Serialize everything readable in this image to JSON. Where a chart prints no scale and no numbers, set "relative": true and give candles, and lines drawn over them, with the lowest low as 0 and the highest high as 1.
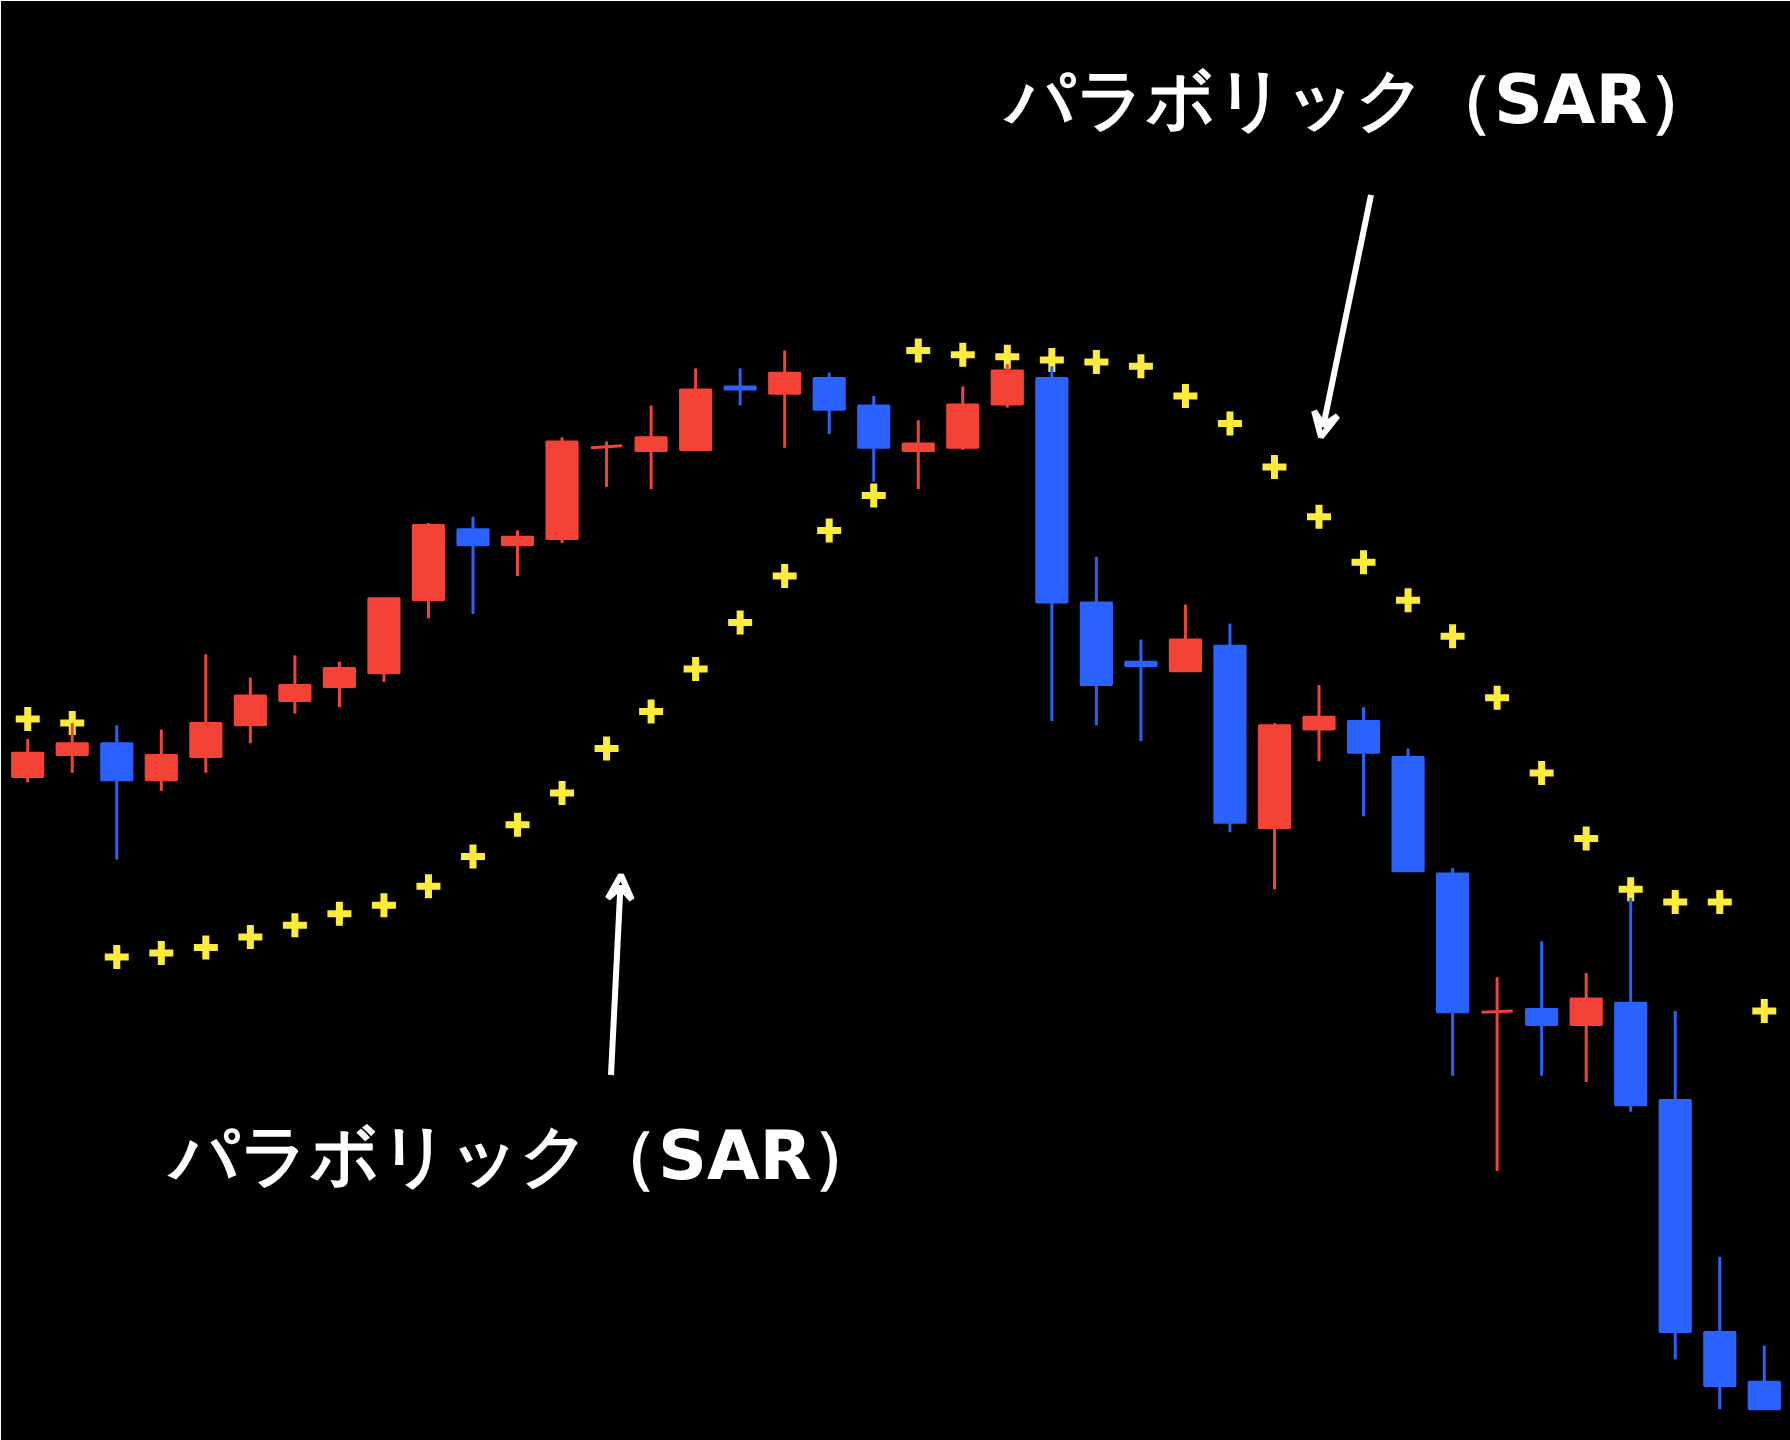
{
  "chart_data": {
    "type": "candlestick",
    "relative": true,
    "categories": [
      null,
      null,
      null,
      null,
      null,
      null,
      null,
      null,
      null,
      null,
      null,
      null,
      null,
      null,
      null,
      null,
      null,
      null,
      null,
      null,
      null,
      null,
      null,
      null,
      null,
      null,
      null,
      null,
      null,
      null,
      null,
      null,
      null,
      null,
      null,
      null,
      null,
      null,
      null,
      null
    ],
    "ohlc": [
      [
        0.597,
        0.633,
        0.592,
        0.62
      ],
      [
        0.618,
        0.648,
        0.601,
        0.629
      ],
      [
        0.629,
        0.646,
        0.519,
        0.594
      ],
      [
        0.594,
        0.642,
        0.584,
        0.618
      ],
      [
        0.616,
        0.713,
        0.601,
        0.648
      ],
      [
        0.646,
        0.691,
        0.629,
        0.674
      ],
      [
        0.669,
        0.712,
        0.657,
        0.684
      ],
      [
        0.682,
        0.706,
        0.663,
        0.7
      ],
      [
        0.695,
        0.766,
        0.687,
        0.766
      ],
      [
        0.764,
        0.837,
        0.747,
        0.835
      ],
      [
        0.831,
        0.843,
        0.751,
        0.816
      ],
      [
        0.816,
        0.83,
        0.787,
        0.824
      ],
      [
        0.822,
        0.918,
        0.818,
        0.914
      ],
      [
        0.908,
        0.914,
        0.871,
        0.91
      ],
      [
        0.905,
        0.948,
        0.869,
        0.918
      ],
      [
        0.906,
        0.983,
        0.906,
        0.963
      ],
      [
        0.966,
        0.983,
        0.948,
        0.963
      ],
      [
        0.959,
        1.0,
        0.908,
        0.979
      ],
      [
        0.974,
        0.979,
        0.921,
        0.944
      ],
      [
        0.948,
        0.957,
        0.876,
        0.908
      ],
      [
        0.905,
        0.934,
        0.869,
        0.912
      ],
      [
        0.908,
        0.966,
        0.906,
        0.949
      ],
      [
        0.949,
        0.987,
        0.946,
        0.981
      ],
      [
        0.974,
        0.985,
        0.65,
        0.762
      ],
      [
        0.762,
        0.805,
        0.646,
        0.684
      ],
      [
        0.706,
        0.727,
        0.631,
        0.702
      ],
      [
        0.697,
        0.76,
        0.697,
        0.727
      ],
      [
        0.721,
        0.742,
        0.545,
        0.554
      ],
      [
        0.549,
        0.648,
        0.491,
        0.646
      ],
      [
        0.642,
        0.684,
        0.612,
        0.654
      ],
      [
        0.65,
        0.663,
        0.56,
        0.62
      ],
      [
        0.616,
        0.624,
        0.508,
        0.508
      ],
      [
        0.506,
        0.511,
        0.315,
        0.375
      ],
      [
        0.375,
        0.408,
        0.225,
        0.376
      ],
      [
        0.378,
        0.442,
        0.315,
        0.363
      ],
      [
        0.363,
        0.412,
        0.309,
        0.388
      ],
      [
        0.384,
        0.483,
        0.281,
        0.287
      ],
      [
        0.292,
        0.376,
        0.047,
        0.073
      ],
      [
        0.073,
        0.144,
        0.0,
        0.022
      ],
      [
        0.026,
        0.06,
        0.0,
        0.0
      ]
    ],
    "colors": [
      "#f44336",
      "#f44336",
      "#2962ff",
      "#f44336",
      "#f44336",
      "#f44336",
      "#f44336",
      "#f44336",
      "#f44336",
      "#f44336",
      "#2962ff",
      "#f44336",
      "#f44336",
      "#f44336",
      "#f44336",
      "#f44336",
      "#2962ff",
      "#f44336",
      "#2962ff",
      "#2962ff",
      "#f44336",
      "#f44336",
      "#f44336",
      "#2962ff",
      "#2962ff",
      "#2962ff",
      "#f44336",
      "#2962ff",
      "#f44336",
      "#f44336",
      "#2962ff",
      "#2962ff",
      "#2962ff",
      "#f44336",
      "#2962ff",
      "#f44336",
      "#2962ff",
      "#2962ff",
      "#2962ff",
      "#2962ff"
    ],
    "series": [
      {
        "type": "scatter",
        "color": "#ffeb3b",
        "values": [
          0.652,
          0.648,
          0.427,
          0.431,
          0.436,
          0.446,
          0.457,
          0.468,
          0.476,
          0.494,
          0.522,
          0.552,
          0.582,
          0.624,
          0.659,
          0.699,
          0.743,
          0.787,
          0.83,
          0.863,
          1.0,
          0.996,
          0.994,
          0.991,
          0.989,
          0.985,
          0.957,
          0.931,
          0.89,
          0.843,
          0.8,
          0.764,
          0.73,
          0.672,
          0.601,
          0.539,
          0.491,
          0.479,
          0.479,
          0.376
        ]
      }
    ],
    "marker": "cross",
    "annotations": [
      "パラボリック（SAR）",
      "パラボリック（SAR）"
    ]
  }
}
